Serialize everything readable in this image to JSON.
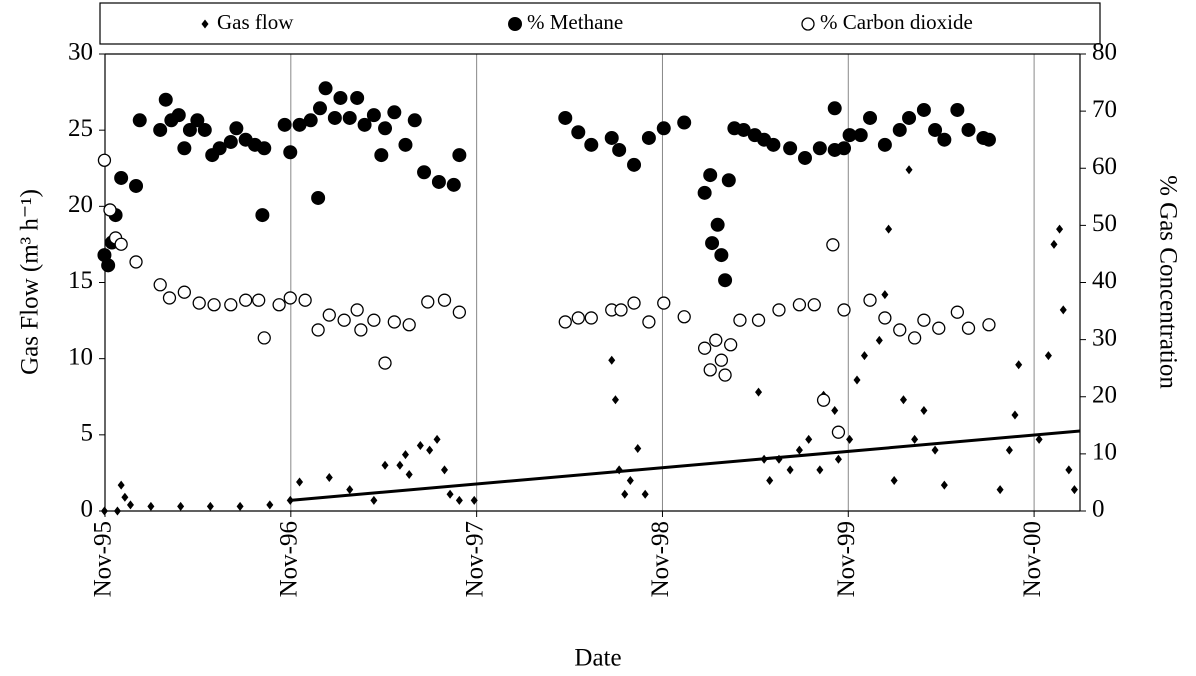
{
  "chart_data": {
    "type": "scatter",
    "x_label": "Date",
    "y_label": "Gas Flow (m³ h⁻¹)",
    "y2_label": "% Gas Concentration",
    "xlim": [
      1995.833,
      2001.08
    ],
    "xticks": [
      {
        "value": 1995.833,
        "label": "Nov-95"
      },
      {
        "value": 1996.833,
        "label": "Nov-96"
      },
      {
        "value": 1997.833,
        "label": "Nov-97"
      },
      {
        "value": 1998.833,
        "label": "Nov-98"
      },
      {
        "value": 1999.833,
        "label": "Nov-99"
      },
      {
        "value": 2000.833,
        "label": "Nov-00"
      }
    ],
    "ylim": [
      0,
      30
    ],
    "yticks": [
      0,
      5,
      10,
      15,
      20,
      25,
      30
    ],
    "y2lim": [
      0,
      80
    ],
    "y2ticks": [
      0,
      10,
      20,
      30,
      40,
      50,
      60,
      70,
      80
    ],
    "grid": "x",
    "legend": "top",
    "series": [
      {
        "name": "Gas flow",
        "color": "#000000",
        "marker": "diamond",
        "axis": "y",
        "x": [
          1995.83,
          1995.9,
          1995.92,
          1995.94,
          1995.97,
          1996.08,
          1996.24,
          1996.4,
          1996.56,
          1996.72,
          1996.83,
          1996.88,
          1997.04,
          1997.15,
          1997.28,
          1997.34,
          1997.42,
          1997.45,
          1997.47,
          1997.53,
          1997.58,
          1997.62,
          1997.66,
          1997.69,
          1997.74,
          1997.82,
          1998.56,
          1998.58,
          1998.6,
          1998.63,
          1998.66,
          1998.7,
          1998.74,
          1999.35,
          1999.38,
          1999.41,
          1999.46,
          1999.52,
          1999.57,
          1999.62,
          1999.68,
          1999.7,
          1999.76,
          1999.78,
          1999.84,
          1999.88,
          1999.92,
          2000.0,
          2000.03,
          2000.05,
          2000.08,
          2000.13,
          2000.16,
          2000.19,
          2000.24,
          2000.3,
          2000.35,
          2000.65,
          2000.7,
          2000.73,
          2000.75,
          2000.86,
          2000.91,
          2000.94,
          2000.97,
          2000.99,
          2001.02,
          2001.05
        ],
        "values": [
          0,
          0,
          1.7,
          0.9,
          0.4,
          0.3,
          0.3,
          0.3,
          0.3,
          0.4,
          0.7,
          1.9,
          2.2,
          1.4,
          0.7,
          3.0,
          3.0,
          3.7,
          2.4,
          4.3,
          4.0,
          4.7,
          2.7,
          1.1,
          0.7,
          0.7,
          9.9,
          7.3,
          2.7,
          1.1,
          2.0,
          4.1,
          1.1,
          7.8,
          3.4,
          2.0,
          3.4,
          2.7,
          4.0,
          4.7,
          2.7,
          7.6,
          6.6,
          3.4,
          4.7,
          8.6,
          10.2,
          11.2,
          14.2,
          18.5,
          2.0,
          7.3,
          22.4,
          4.7,
          6.6,
          4.0,
          1.7,
          1.4,
          4.0,
          6.3,
          9.6,
          4.7,
          10.2,
          17.5,
          18.5,
          13.2,
          2.7,
          1.4
        ]
      },
      {
        "name": "% Methane",
        "color": "#000000",
        "marker": "filled-circle",
        "axis": "y2",
        "x": [
          1995.83,
          1995.85,
          1995.87,
          1995.89,
          1995.92,
          1996.0,
          1996.02,
          1996.13,
          1996.16,
          1996.19,
          1996.23,
          1996.26,
          1996.29,
          1996.33,
          1996.37,
          1996.41,
          1996.45,
          1996.51,
          1996.54,
          1996.59,
          1996.64,
          1996.68,
          1996.69,
          1996.8,
          1996.83,
          1996.88,
          1996.94,
          1996.99,
          1996.98,
          1997.02,
          1997.07,
          1997.1,
          1997.15,
          1997.19,
          1997.23,
          1997.28,
          1997.32,
          1997.34,
          1997.39,
          1997.45,
          1997.5,
          1997.55,
          1997.63,
          1997.71,
          1997.74,
          1998.31,
          1998.38,
          1998.45,
          1998.56,
          1998.6,
          1998.68,
          1998.76,
          1998.84,
          1998.95,
          1999.06,
          1999.09,
          1999.1,
          1999.13,
          1999.15,
          1999.17,
          1999.19,
          1999.22,
          1999.27,
          1999.33,
          1999.38,
          1999.43,
          1999.52,
          1999.6,
          1999.68,
          1999.76,
          1999.81,
          1999.76,
          1999.84,
          1999.9,
          1999.95,
          2000.03,
          2000.11,
          2000.16,
          2000.24,
          2000.3,
          2000.35,
          2000.42,
          2000.48,
          2000.56,
          2000.59
        ],
        "values": [
          44.8,
          43,
          47,
          51.8,
          58.3,
          56.9,
          68.4,
          66.7,
          72,
          68.4,
          69.3,
          63.5,
          66.7,
          68.4,
          66.7,
          62.3,
          63.5,
          64.6,
          67,
          65,
          64.1,
          51.8,
          63.5,
          67.6,
          62.8,
          67.6,
          68.4,
          70.5,
          54.8,
          74,
          68.8,
          72.3,
          68.8,
          72.3,
          67.6,
          69.3,
          62.3,
          67,
          69.8,
          64.1,
          68.4,
          59.3,
          57.6,
          57.1,
          62.3,
          68.8,
          66.3,
          64.1,
          65.3,
          63.2,
          60.6,
          65.3,
          67,
          68,
          55.7,
          58.8,
          46.9,
          50.1,
          44.8,
          40.4,
          57.9,
          67,
          66.7,
          65.8,
          65,
          64.1,
          63.5,
          61.8,
          63.5,
          63.2,
          63.5,
          70.5,
          65.8,
          65.8,
          68.8,
          64.1,
          66.7,
          68.8,
          70.2,
          66.7,
          65,
          70.2,
          66.7,
          65.3,
          65
        ]
      },
      {
        "name": "% Carbon dioxide",
        "color": "#000000",
        "marker": "open-circle",
        "axis": "y2",
        "x": [
          1995.83,
          1995.86,
          1995.89,
          1995.92,
          1996.0,
          1996.13,
          1996.18,
          1996.26,
          1996.34,
          1996.42,
          1996.51,
          1996.59,
          1996.66,
          1996.69,
          1996.77,
          1996.83,
          1996.91,
          1996.98,
          1997.04,
          1997.12,
          1997.19,
          1997.21,
          1997.28,
          1997.34,
          1997.39,
          1997.47,
          1997.57,
          1997.66,
          1997.74,
          1998.31,
          1998.38,
          1998.45,
          1998.56,
          1998.61,
          1998.68,
          1998.76,
          1998.84,
          1998.95,
          1999.06,
          1999.09,
          1999.12,
          1999.15,
          1999.17,
          1999.2,
          1999.25,
          1999.35,
          1999.46,
          1999.57,
          1999.65,
          1999.7,
          1999.75,
          1999.78,
          1999.81,
          1999.95,
          2000.03,
          2000.11,
          2000.19,
          2000.24,
          2000.32,
          2000.42,
          2000.48,
          2000.59
        ],
        "values": [
          61.4,
          52.7,
          47.8,
          46.7,
          43.6,
          39.6,
          37.3,
          38.3,
          36.4,
          36.1,
          36.1,
          36.9,
          36.9,
          30.3,
          36.1,
          37.3,
          36.9,
          31.7,
          34.3,
          33.4,
          35.2,
          31.7,
          33.4,
          25.9,
          33.1,
          32.6,
          36.6,
          36.9,
          34.8,
          33.1,
          33.8,
          33.8,
          35.2,
          35.2,
          36.4,
          33.1,
          36.4,
          34,
          28.5,
          24.7,
          29.9,
          26.4,
          23.8,
          29.1,
          33.4,
          33.4,
          35.2,
          36.1,
          36.1,
          19.4,
          46.6,
          13.8,
          35.2,
          36.9,
          33.8,
          31.7,
          30.3,
          33.4,
          32,
          34.8,
          32,
          32.6
        ]
      }
    ],
    "trendline": {
      "color": "#000000",
      "x": [
        1996.83,
        2001.08
      ],
      "values": [
        0.7,
        5.25
      ]
    }
  }
}
